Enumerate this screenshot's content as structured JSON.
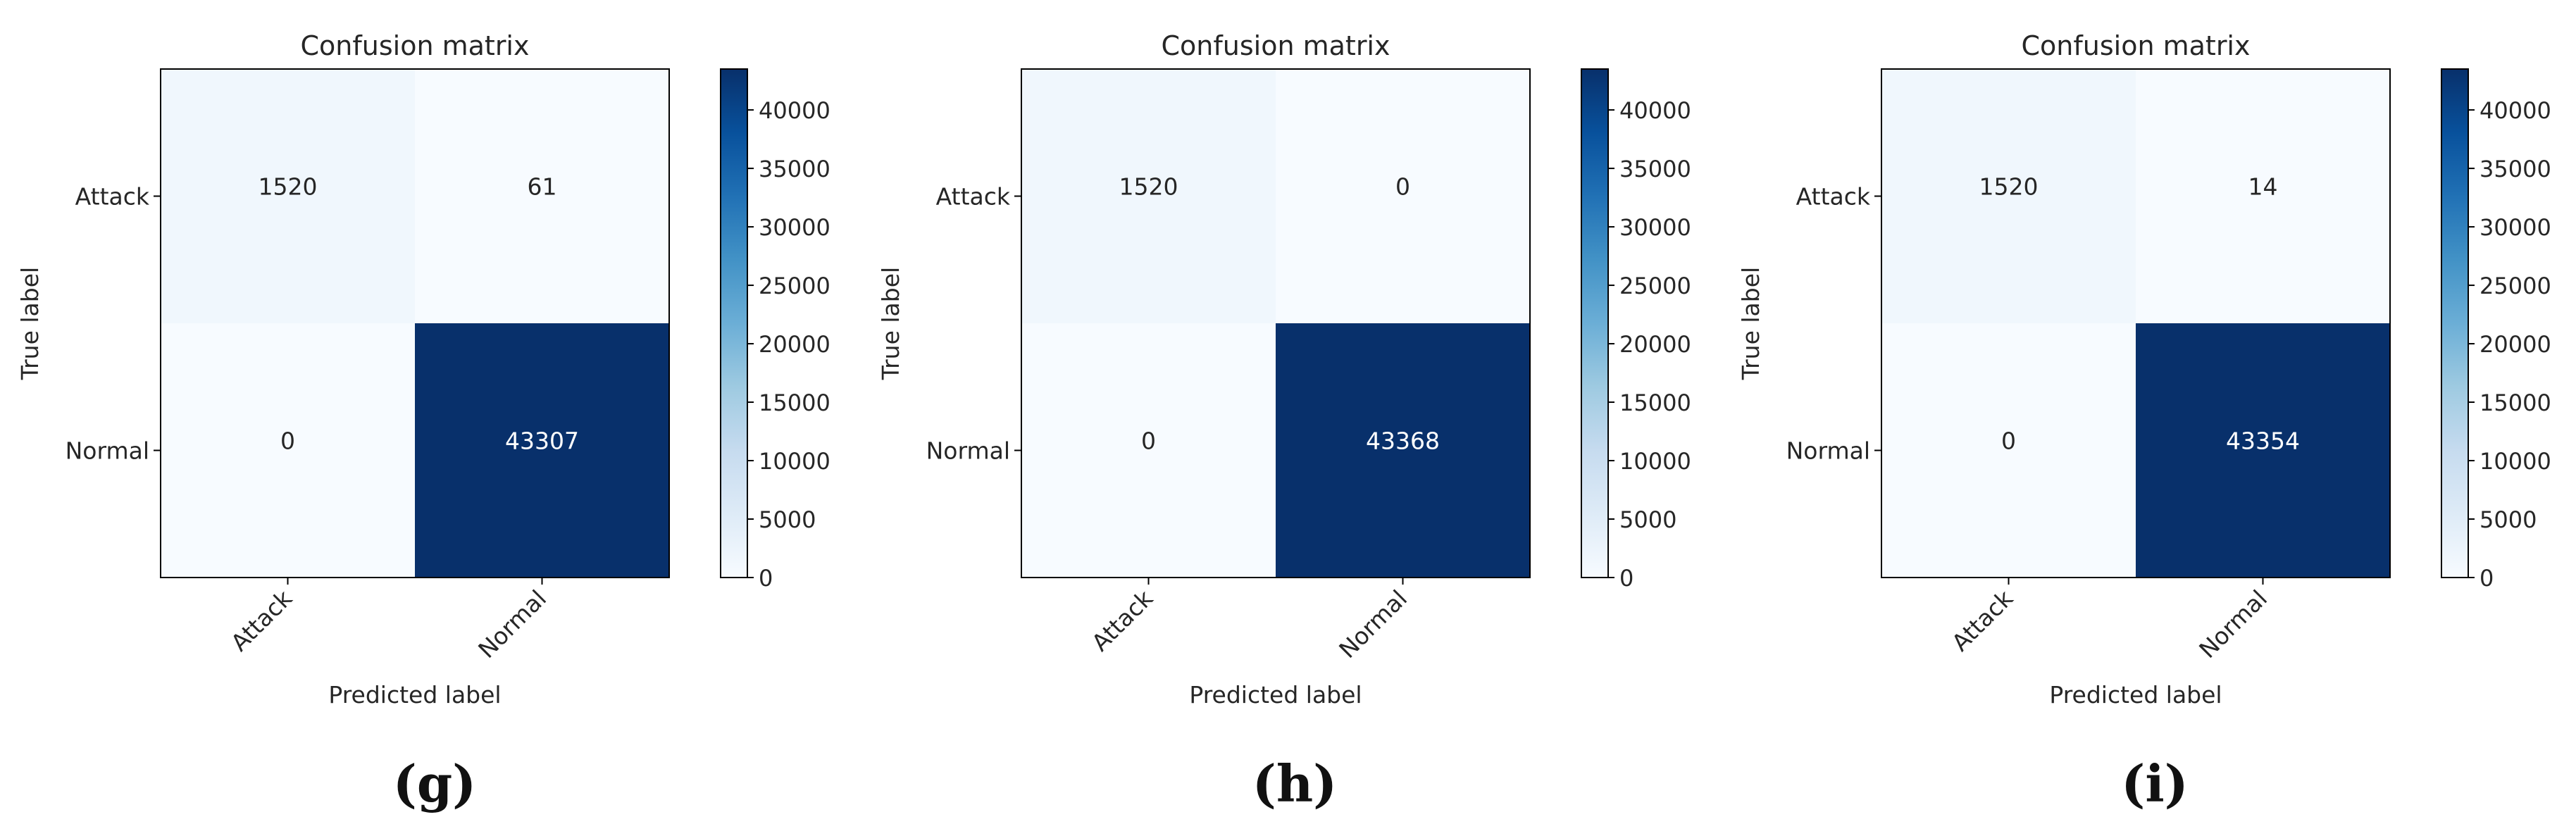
{
  "chart_data": [
    {
      "type": "heatmap",
      "title": "Confusion matrix",
      "xlabel": "Predicted label",
      "ylabel": "True label",
      "x_categories": [
        "Attack",
        "Normal"
      ],
      "y_categories": [
        "Attack",
        "Normal"
      ],
      "values": [
        [
          1520,
          61
        ],
        [
          0,
          43307
        ]
      ],
      "colorbar": {
        "cmap": "Blues",
        "min": 0,
        "max": 43307,
        "ticks": [
          0,
          5000,
          10000,
          15000,
          20000,
          25000,
          30000,
          35000,
          40000
        ]
      },
      "caption": "(g)"
    },
    {
      "type": "heatmap",
      "title": "Confusion matrix",
      "xlabel": "Predicted label",
      "ylabel": "True label",
      "x_categories": [
        "Attack",
        "Normal"
      ],
      "y_categories": [
        "Attack",
        "Normal"
      ],
      "values": [
        [
          1520,
          0
        ],
        [
          0,
          43368
        ]
      ],
      "colorbar": {
        "cmap": "Blues",
        "min": 0,
        "max": 43368,
        "ticks": [
          0,
          5000,
          10000,
          15000,
          20000,
          25000,
          30000,
          35000,
          40000
        ]
      },
      "caption": "(h)"
    },
    {
      "type": "heatmap",
      "title": "Confusion matrix",
      "xlabel": "Predicted label",
      "ylabel": "True label",
      "x_categories": [
        "Attack",
        "Normal"
      ],
      "y_categories": [
        "Attack",
        "Normal"
      ],
      "values": [
        [
          1520,
          14
        ],
        [
          0,
          43354
        ]
      ],
      "colorbar": {
        "cmap": "Blues",
        "min": 0,
        "max": 43354,
        "ticks": [
          0,
          5000,
          10000,
          15000,
          20000,
          25000,
          30000,
          35000,
          40000
        ]
      },
      "caption": "(i)"
    }
  ],
  "colors": {
    "blues_light": "#f7fbff",
    "blues_dark": "#08306b",
    "text_dark": "#262626",
    "text_light": "#ffffff",
    "axis": "#000000"
  }
}
